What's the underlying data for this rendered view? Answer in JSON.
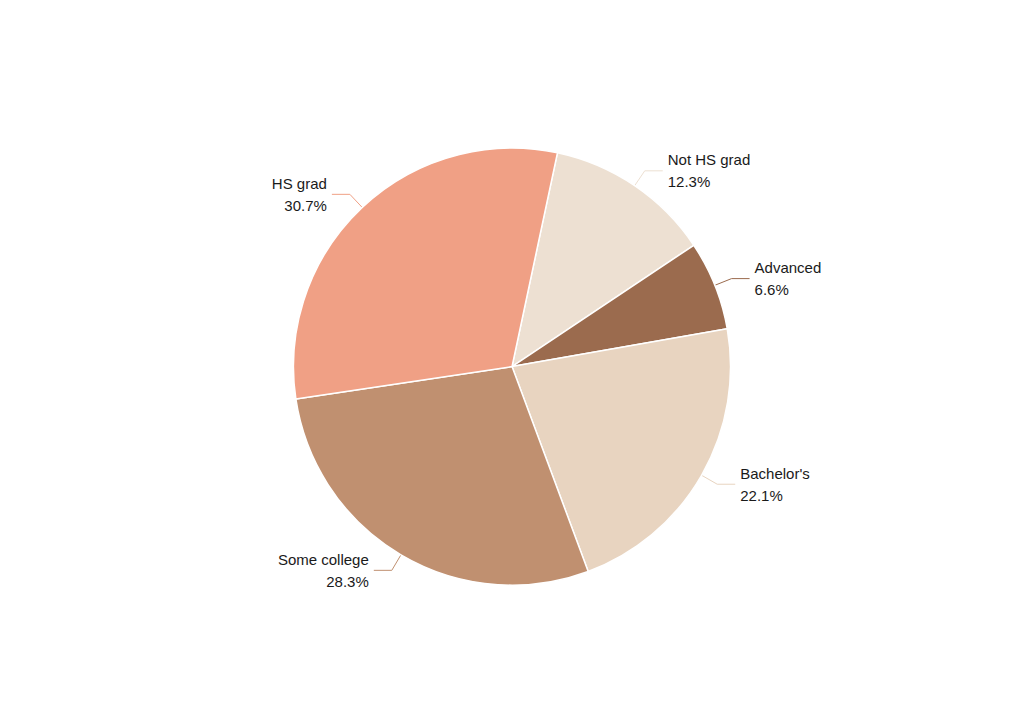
{
  "chart_data": {
    "type": "pie",
    "categories": [
      "Not HS grad",
      "Advanced",
      "Bachelor's",
      "Some college",
      "HS grad"
    ],
    "values": [
      12.3,
      6.6,
      22.1,
      28.3,
      30.7
    ],
    "value_labels": [
      "12.3%",
      "6.6%",
      "22.1%",
      "28.3%",
      "30.7%"
    ],
    "colors": [
      "#ede0d2",
      "#9b6b4e",
      "#e8d4c0",
      "#c09070",
      "#f0a085"
    ],
    "data_labels": true
  }
}
